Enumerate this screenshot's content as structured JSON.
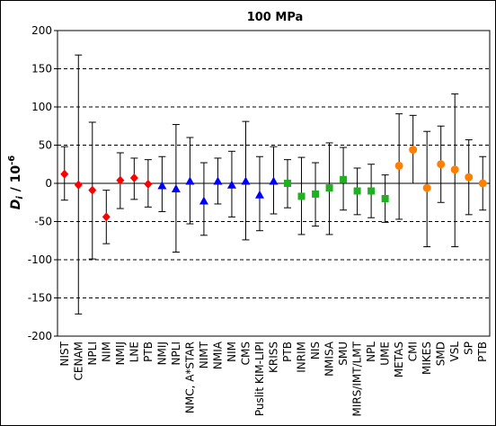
{
  "chart_data": {
    "type": "scatter",
    "title": "100 MPa",
    "ylabel_main": "D",
    "ylabel_sub": "i",
    "ylabel_rest": " / 10",
    "ylabel_exp": "-6",
    "ylim": [
      -200,
      200
    ],
    "yticks": [
      -200,
      -150,
      -100,
      -50,
      0,
      50,
      100,
      150,
      200
    ],
    "ytick_labels": [
      "-200",
      "-150",
      "-100",
      "-50",
      "0",
      "50",
      "100",
      "150",
      "200"
    ],
    "grid": "dashed horizontal at 50 intervals",
    "categories": [
      "NIST",
      "CENAM",
      "NPLI",
      "NIM",
      "NMIJ",
      "LNE",
      "PTB",
      "NMIJ",
      "NPLI",
      "NMC, A*STAR",
      "NIMT",
      "NMIA",
      "NIM",
      "CMS",
      "Puslit KIM-LIPI",
      "KRISS",
      "PTB",
      "INRIM",
      "NIS",
      "NMISA",
      "SMU",
      "MIRS/IMT/LMT",
      "NPL",
      "UME",
      "METAS",
      "CMI",
      "MIKES",
      "SMD",
      "VSL",
      "SP",
      "PTB"
    ],
    "series": [
      {
        "color": "#ff0000",
        "marker": "diamond",
        "values": [
          12,
          -2,
          -9,
          -44,
          4,
          7,
          -1
        ],
        "err_low": [
          -22,
          -171,
          -99,
          -79,
          -33,
          -21,
          -31
        ],
        "err_high": [
          48,
          168,
          80,
          -9,
          40,
          33,
          31
        ]
      },
      {
        "color": "#0000ff",
        "marker": "triangle",
        "values": [
          -3,
          -7,
          3,
          -23,
          3,
          -2,
          3,
          -15,
          3
        ],
        "err_low": [
          -37,
          -90,
          -53,
          -68,
          -27,
          -44,
          -74,
          -62,
          -40
        ],
        "err_high": [
          35,
          77,
          60,
          27,
          33,
          42,
          81,
          35,
          48
        ]
      },
      {
        "color": "#1fb11f",
        "marker": "square",
        "values": [
          0,
          -17,
          -14,
          -6,
          5,
          -10,
          -10,
          -20
        ],
        "err_low": [
          -32,
          -67,
          -56,
          -67,
          -35,
          -41,
          -45,
          -51
        ],
        "err_high": [
          31,
          34,
          27,
          53,
          47,
          20,
          25,
          11
        ]
      },
      {
        "color": "#ff8000",
        "marker": "circle",
        "values": [
          23,
          44,
          -6,
          25,
          18,
          8,
          0
        ],
        "err_low": [
          -47,
          0,
          -83,
          -25,
          -83,
          -41,
          -35
        ],
        "err_high": [
          91,
          89,
          68,
          75,
          117,
          57,
          35
        ]
      }
    ]
  }
}
